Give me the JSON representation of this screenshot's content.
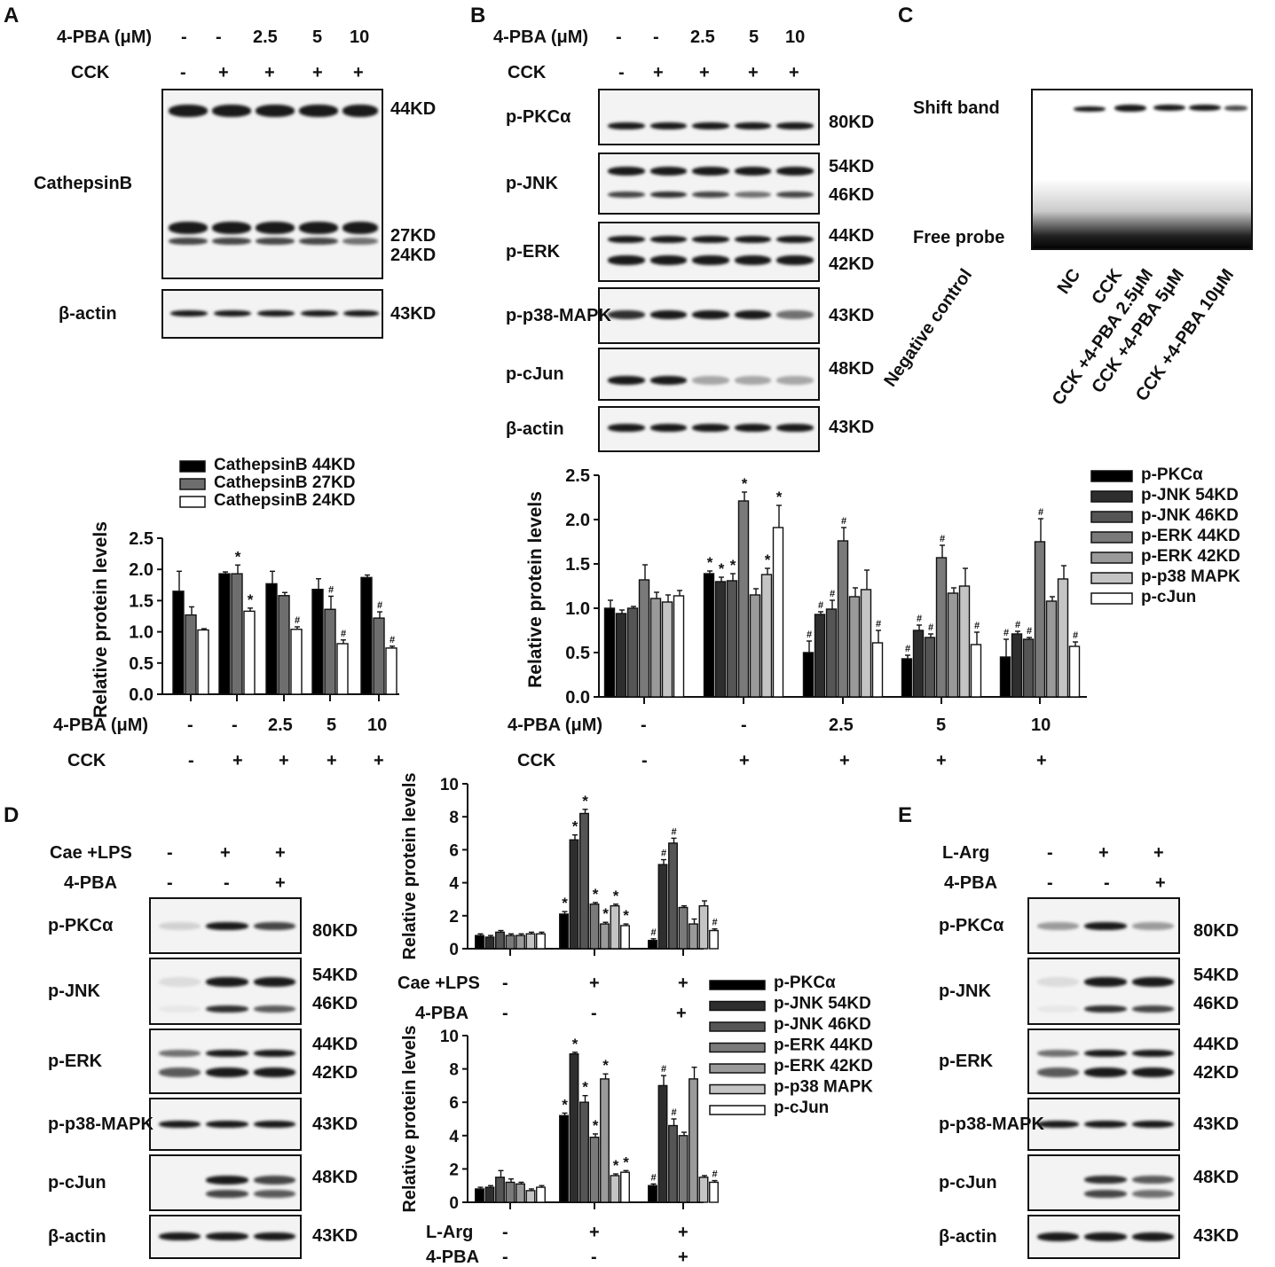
{
  "panels": {
    "A": "A",
    "B": "B",
    "C": "C",
    "D": "D",
    "E": "E"
  },
  "row_labels": {
    "pba": "4-PBA (μM)",
    "cck": "CCK",
    "cae_lps": "Cae +LPS",
    "pba_short": "4-PBA",
    "larg": "L-Arg"
  },
  "treatments_top": {
    "pba": [
      "-",
      "-",
      "2.5",
      "5",
      "10"
    ],
    "cck": [
      "-",
      "+",
      "+",
      "+",
      "+"
    ]
  },
  "treatments_3": {
    "first": [
      "-",
      "+",
      "+"
    ],
    "pba": [
      "-",
      "-",
      "+"
    ]
  },
  "panel_a": {
    "blot_label": "CathepsinB",
    "actin_label": "β-actin",
    "kd": [
      "44KD",
      "27KD",
      "24KD",
      "43KD"
    ]
  },
  "panel_b": {
    "blots": [
      {
        "label": "p-PKCα",
        "kd": [
          "80KD"
        ]
      },
      {
        "label": "p-JNK",
        "kd": [
          "54KD",
          "46KD"
        ]
      },
      {
        "label": "p-ERK",
        "kd": [
          "44KD",
          "42KD"
        ]
      },
      {
        "label": "p-p38-MAPK",
        "kd": [
          "43KD"
        ]
      },
      {
        "label": "p-cJun",
        "kd": [
          "48KD"
        ]
      },
      {
        "label": "β-actin",
        "kd": [
          "43KD"
        ]
      }
    ]
  },
  "panel_c": {
    "shift": "Shift band",
    "free": "Free probe",
    "lanes": [
      "Negative control",
      "NC",
      "CCK",
      "CCK +4-PBA 2.5μM",
      "CCK +4-PBA 5μM",
      "CCK +4-PBA 10μM"
    ]
  },
  "panel_d_blots": [
    {
      "label": "p-PKCα",
      "kd": [
        "80KD"
      ]
    },
    {
      "label": "p-JNK",
      "kd": [
        "54KD",
        "46KD"
      ]
    },
    {
      "label": "p-ERK",
      "kd": [
        "44KD",
        "42KD"
      ]
    },
    {
      "label": "p-p38-MAPK",
      "kd": [
        "43KD"
      ]
    },
    {
      "label": "p-cJun",
      "kd": [
        "48KD"
      ]
    },
    {
      "label": "β-actin",
      "kd": [
        "43KD"
      ]
    }
  ],
  "panel_e_blots": [
    {
      "label": "p-PKCα",
      "kd": [
        "80KD"
      ]
    },
    {
      "label": "p-JNK",
      "kd": [
        "54KD",
        "46KD"
      ]
    },
    {
      "label": "p-ERK",
      "kd": [
        "44KD",
        "42KD"
      ]
    },
    {
      "label": "p-p38-MAPK",
      "kd": [
        "43KD"
      ]
    },
    {
      "label": "p-cJun",
      "kd": [
        "48KD"
      ]
    },
    {
      "label": "β-actin",
      "kd": [
        "43KD"
      ]
    }
  ],
  "bar_colors_3": [
    "#000000",
    "#6e6e6e",
    "#ffffff"
  ],
  "bar_colors_7": [
    "#000000",
    "#2e2e2e",
    "#555555",
    "#7a7a7a",
    "#9a9a9a",
    "#c4c4c4",
    "#ffffff"
  ],
  "chart_data": [
    {
      "id": "A",
      "type": "bar",
      "ylabel": "Relative protein levels",
      "ylim": [
        0,
        2.5
      ],
      "yticks": [
        "0.0",
        "0.5",
        "1.0",
        "1.5",
        "2.0",
        "2.5"
      ],
      "legend": "top",
      "groups": 5,
      "series": [
        {
          "name": "CathepsinB 44KD",
          "values": [
            1.65,
            1.93,
            1.77,
            1.68,
            1.87
          ],
          "err": [
            0.32,
            0.03,
            0.2,
            0.17,
            0.04
          ],
          "marks": [
            "",
            "",
            "",
            "",
            ""
          ]
        },
        {
          "name": "CathepsinB 27KD",
          "values": [
            1.27,
            1.93,
            1.58,
            1.36,
            1.22
          ],
          "err": [
            0.13,
            0.14,
            0.05,
            0.21,
            0.1
          ],
          "marks": [
            "",
            "*",
            "",
            "#",
            "#"
          ]
        },
        {
          "name": "CathepsinB 24KD",
          "values": [
            1.03,
            1.33,
            1.04,
            0.81,
            0.74
          ],
          "err": [
            0.02,
            0.05,
            0.04,
            0.06,
            0.03
          ],
          "marks": [
            "",
            "*",
            "#",
            "#",
            "#"
          ]
        }
      ]
    },
    {
      "id": "B",
      "type": "bar",
      "ylabel": "Relative protein levels",
      "ylim": [
        0,
        2.5
      ],
      "yticks": [
        "0.0",
        "0.5",
        "1.0",
        "1.5",
        "2.0",
        "2.5"
      ],
      "legend": "right",
      "groups": 5,
      "series": [
        {
          "name": "p-PKCα",
          "values": [
            1.0,
            1.39,
            0.5,
            0.43,
            0.45
          ],
          "err": [
            0.09,
            0.03,
            0.13,
            0.04,
            0.2
          ],
          "marks": [
            "",
            "*",
            "#",
            "#",
            "#"
          ]
        },
        {
          "name": "p-JNK 54KD",
          "values": [
            0.94,
            1.3,
            0.93,
            0.75,
            0.71
          ],
          "err": [
            0.04,
            0.05,
            0.03,
            0.06,
            0.03
          ],
          "marks": [
            "",
            "*",
            "#",
            "#",
            "#"
          ]
        },
        {
          "name": "p-JNK 46KD",
          "values": [
            1.0,
            1.31,
            0.99,
            0.67,
            0.65
          ],
          "err": [
            0.02,
            0.08,
            0.1,
            0.04,
            0.02
          ],
          "marks": [
            "",
            "*",
            "#",
            "#",
            "#"
          ]
        },
        {
          "name": "p-ERK 44KD",
          "values": [
            1.32,
            2.21,
            1.76,
            1.57,
            1.75
          ],
          "err": [
            0.17,
            0.1,
            0.15,
            0.14,
            0.26
          ],
          "marks": [
            "",
            "*",
            "#",
            "#",
            "#"
          ]
        },
        {
          "name": "p-ERK 42KD",
          "values": [
            1.11,
            1.15,
            1.13,
            1.17,
            1.08
          ],
          "err": [
            0.07,
            0.07,
            0.1,
            0.06,
            0.05
          ],
          "marks": [
            "",
            "",
            "",
            "",
            ""
          ]
        },
        {
          "name": "p-p38 MAPK",
          "values": [
            1.07,
            1.38,
            1.21,
            1.25,
            1.33
          ],
          "err": [
            0.08,
            0.07,
            0.22,
            0.2,
            0.15
          ],
          "marks": [
            "",
            "*",
            "",
            "",
            ""
          ]
        },
        {
          "name": "p-cJun",
          "values": [
            1.14,
            1.91,
            0.61,
            0.59,
            0.57
          ],
          "err": [
            0.06,
            0.25,
            0.14,
            0.14,
            0.05
          ],
          "marks": [
            "",
            "*",
            "#",
            "#",
            "#"
          ]
        }
      ]
    },
    {
      "id": "D",
      "type": "bar",
      "ylabel": "Relative protein levels",
      "ylim": [
        0,
        10
      ],
      "yticks": [
        "0",
        "2",
        "4",
        "6",
        "8",
        "10"
      ],
      "legend": "right",
      "groups": 3,
      "series": [
        {
          "name": "p-PKCα",
          "values": [
            0.8,
            2.1,
            0.5
          ],
          "err": [
            0.1,
            0.15,
            0.1
          ],
          "marks": [
            "",
            "*",
            "#"
          ]
        },
        {
          "name": "p-JNK 54KD",
          "values": [
            0.7,
            6.6,
            5.1
          ],
          "err": [
            0.1,
            0.3,
            0.3
          ],
          "marks": [
            "",
            "*",
            "#"
          ]
        },
        {
          "name": "p-JNK 46KD",
          "values": [
            1.0,
            8.2,
            6.4
          ],
          "err": [
            0.1,
            0.25,
            0.3
          ],
          "marks": [
            "",
            "*",
            "#"
          ]
        },
        {
          "name": "p-ERK 44KD",
          "values": [
            0.8,
            2.7,
            2.5
          ],
          "err": [
            0.1,
            0.1,
            0.1
          ],
          "marks": [
            "",
            "*",
            ""
          ]
        },
        {
          "name": "p-ERK 42KD",
          "values": [
            0.8,
            1.5,
            1.5
          ],
          "err": [
            0.1,
            0.1,
            0.3
          ],
          "marks": [
            "",
            "*",
            ""
          ]
        },
        {
          "name": "p-p38 MAPK",
          "values": [
            0.9,
            2.6,
            2.6
          ],
          "err": [
            0.1,
            0.1,
            0.3
          ],
          "marks": [
            "",
            "*",
            ""
          ]
        },
        {
          "name": "p-cJun",
          "values": [
            0.9,
            1.4,
            1.1
          ],
          "err": [
            0.1,
            0.1,
            0.1
          ],
          "marks": [
            "",
            "*",
            "#"
          ]
        }
      ]
    },
    {
      "id": "E",
      "type": "bar",
      "ylabel": "Relative protein levels",
      "ylim": [
        0,
        10
      ],
      "yticks": [
        "0",
        "2",
        "4",
        "6",
        "8",
        "10"
      ],
      "legend": "none",
      "groups": 3,
      "series": [
        {
          "name": "p-PKCα",
          "values": [
            0.8,
            5.2,
            1.0
          ],
          "err": [
            0.1,
            0.15,
            0.1
          ],
          "marks": [
            "",
            "*",
            "#"
          ]
        },
        {
          "name": "p-JNK 54KD",
          "values": [
            0.9,
            8.9,
            7.0
          ],
          "err": [
            0.1,
            0.1,
            0.6
          ],
          "marks": [
            "",
            "*",
            "#"
          ]
        },
        {
          "name": "p-JNK 46KD",
          "values": [
            1.5,
            6.0,
            4.6
          ],
          "err": [
            0.4,
            0.4,
            0.4
          ],
          "marks": [
            "",
            "*",
            "#"
          ]
        },
        {
          "name": "p-ERK 44KD",
          "values": [
            1.2,
            3.9,
            4.0
          ],
          "err": [
            0.2,
            0.2,
            0.2
          ],
          "marks": [
            "",
            "*",
            ""
          ]
        },
        {
          "name": "p-ERK 42KD",
          "values": [
            1.1,
            7.4,
            7.4
          ],
          "err": [
            0.1,
            0.3,
            0.7
          ],
          "marks": [
            "",
            "*",
            ""
          ]
        },
        {
          "name": "p-p38 MAPK",
          "values": [
            0.7,
            1.6,
            1.5
          ],
          "err": [
            0.1,
            0.1,
            0.1
          ],
          "marks": [
            "",
            "*",
            ""
          ]
        },
        {
          "name": "p-cJun",
          "values": [
            0.9,
            1.8,
            1.2
          ],
          "err": [
            0.1,
            0.1,
            0.1
          ],
          "marks": [
            "",
            "*",
            "#"
          ]
        }
      ]
    }
  ]
}
